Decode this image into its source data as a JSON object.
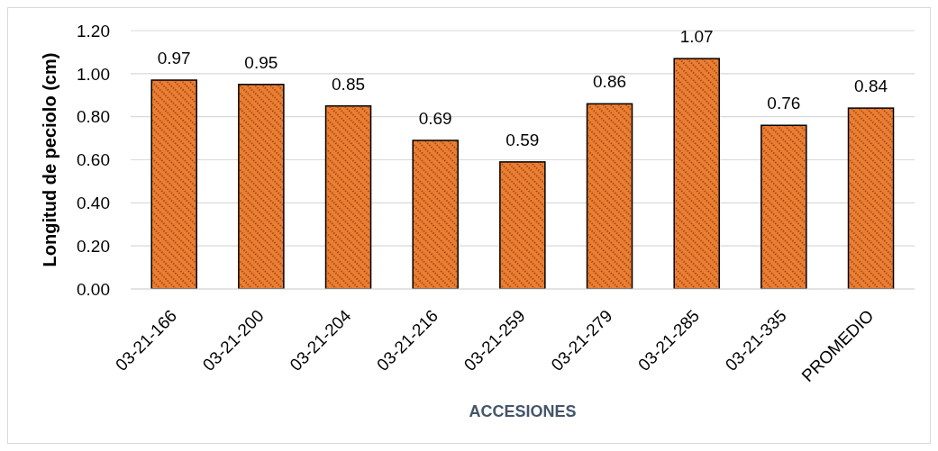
{
  "chart_data": {
    "type": "bar",
    "categories": [
      "03-21-166",
      "03-21-200",
      "03-21-204",
      "03-21-216",
      "03-21-259",
      "03-21-279",
      "03-21-285",
      "03-21-335",
      "PROMEDIO"
    ],
    "values": [
      0.97,
      0.95,
      0.85,
      0.69,
      0.59,
      0.86,
      1.07,
      0.76,
      0.84
    ],
    "color": "#ed7d31",
    "xlabel": "ACCESIONES",
    "ylabel": "Longitud de peciolo (cm)",
    "ylim": [
      0,
      1.2
    ],
    "yticks": [
      {
        "value": 0,
        "label": "0.00"
      },
      {
        "value": 0.2,
        "label": "0.20"
      },
      {
        "value": 0.4,
        "label": "0.40"
      },
      {
        "value": 0.6,
        "label": "0.60"
      },
      {
        "value": 0.8,
        "label": "0.80"
      },
      {
        "value": 1,
        "label": "1.00"
      },
      {
        "value": 1.2,
        "label": "1.20"
      }
    ],
    "grid": "y",
    "data_labels": true
  }
}
